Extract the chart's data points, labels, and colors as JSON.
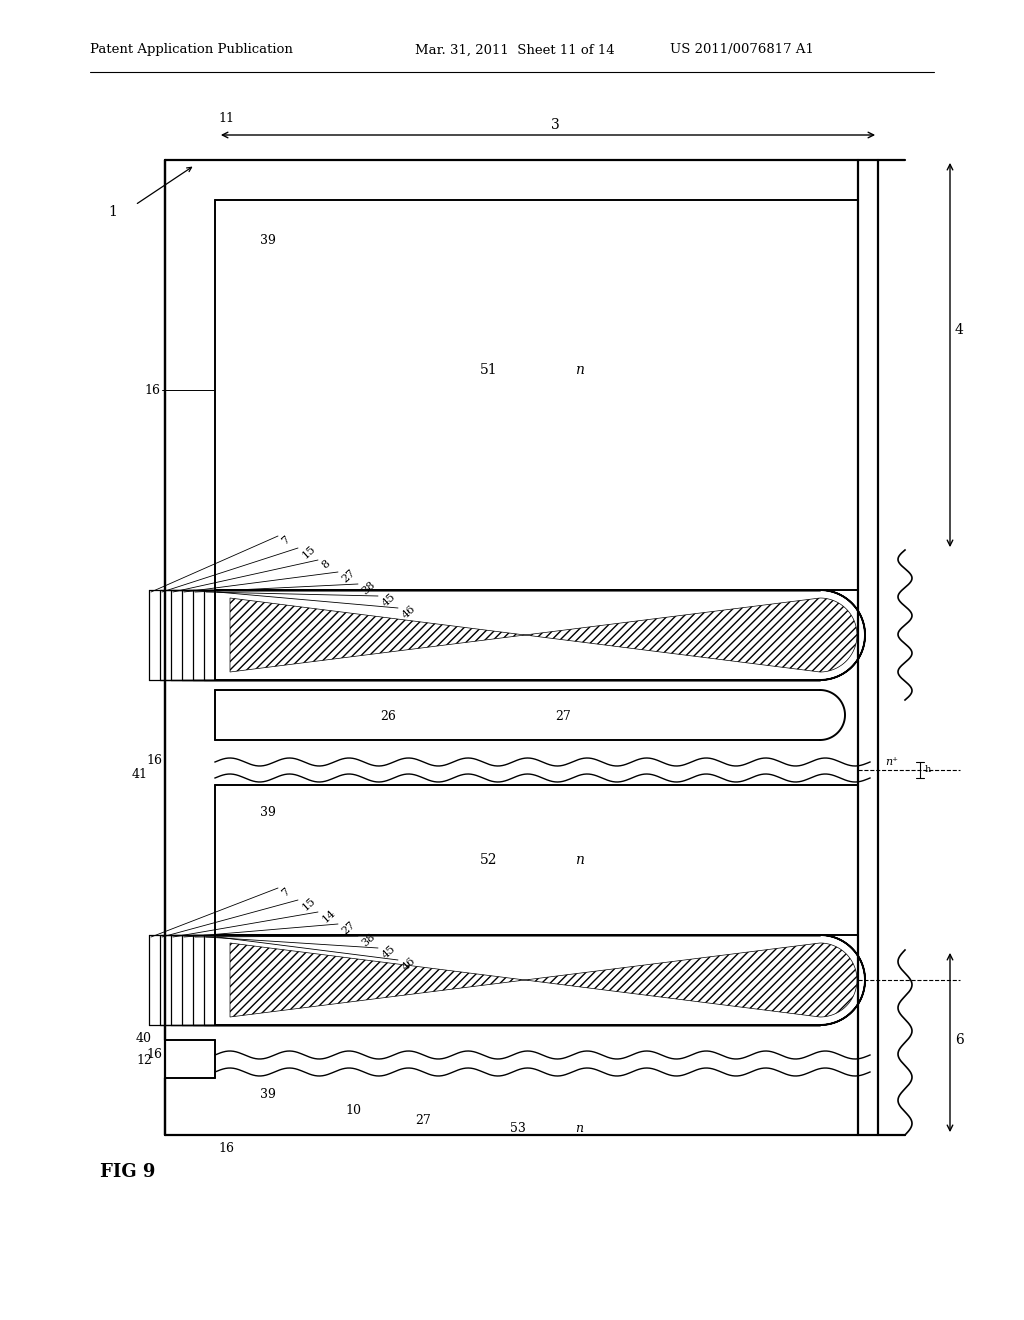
{
  "bg_color": "#ffffff",
  "line_color": "#000000",
  "header_left": "Patent Application Publication",
  "header_mid": "Mar. 31, 2011  Sheet 11 of 14",
  "header_right": "US 2011/0076817 A1",
  "fig_label": "FIG 9"
}
